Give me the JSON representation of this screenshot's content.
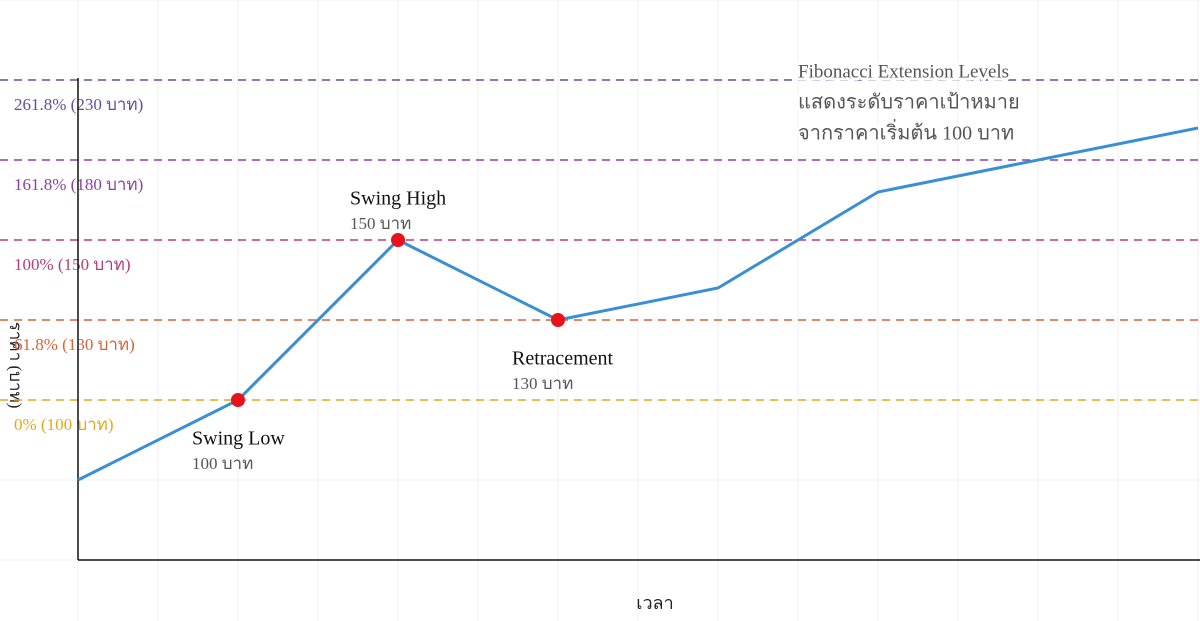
{
  "chart_data": {
    "type": "line",
    "title": [
      "Fibonacci Extension Levels",
      "แสดงระดับราคาเป้าหมาย",
      "จากราคาเริ่มต้น 100 บาท"
    ],
    "x_label": "เวลา",
    "y_label": "ราคา (บาท)",
    "x": [
      0,
      1,
      2,
      3,
      4,
      5,
      7
    ],
    "xlim": [
      0,
      7
    ],
    "ylim": [
      40,
      230
    ],
    "yticks": [
      {
        "value": 100,
        "label": "0% (100 บาท)",
        "color": "#e6a817"
      },
      {
        "value": 130,
        "label": "61.8% (130 บาท)",
        "color": "#d9623a"
      },
      {
        "value": 150,
        "label": "100% (150 บาท)",
        "color": "#b83b7d"
      },
      {
        "value": 180,
        "label": "161.8% (180 บาท)",
        "color": "#8e3fa6"
      },
      {
        "value": 230,
        "label": "261.8% (230 บาท)",
        "color": "#6a4a9c"
      }
    ],
    "series": [
      {
        "name": "ราคา",
        "color": "#3a8fd4",
        "values": [
          70,
          100,
          150,
          130,
          138,
          168,
          200
        ]
      }
    ],
    "annotations": [
      {
        "x": 1,
        "y": 100,
        "text": "Swing Low",
        "subtext": "100 บาท"
      },
      {
        "x": 2,
        "y": 150,
        "text": "Swing High",
        "subtext": "150 บาท"
      },
      {
        "x": 3,
        "y": 130,
        "text": "Retracement",
        "subtext": "130 บาท"
      }
    ],
    "marker_color": "#e8121c"
  }
}
